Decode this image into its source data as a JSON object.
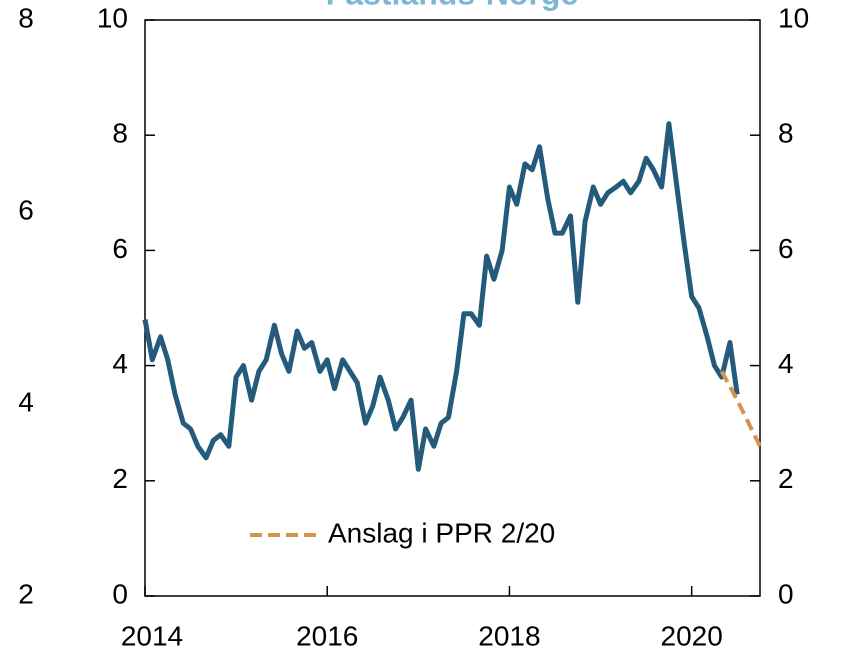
{
  "chart_data": {
    "type": "line",
    "title": "Fastlands-Norge",
    "title_color": "#7db7d8",
    "xlim": [
      2014,
      2020.75
    ],
    "xticks": [
      2014,
      2016,
      2018,
      2020
    ],
    "ylim": [
      0,
      10
    ],
    "yticks": [
      0,
      2,
      4,
      6,
      8,
      10
    ],
    "y2lim": [
      0,
      10
    ],
    "y2ticks": [
      0,
      2,
      4,
      6,
      8,
      10
    ],
    "y3lim": [
      2,
      8
    ],
    "y3ticks": [
      2,
      4,
      6,
      8
    ],
    "series": [
      {
        "color": "#245b7c",
        "style": "solid",
        "x": [
          2014,
          2014.08,
          2014.17,
          2014.25,
          2014.33,
          2014.42,
          2014.5,
          2014.58,
          2014.67,
          2014.75,
          2014.83,
          2014.92,
          2015,
          2015.08,
          2015.17,
          2015.25,
          2015.33,
          2015.42,
          2015.5,
          2015.58,
          2015.67,
          2015.75,
          2015.83,
          2015.92,
          2016,
          2016.08,
          2016.17,
          2016.25,
          2016.33,
          2016.42,
          2016.5,
          2016.58,
          2016.67,
          2016.75,
          2016.83,
          2016.92,
          2017,
          2017.08,
          2017.17,
          2017.25,
          2017.33,
          2017.42,
          2017.5,
          2017.58,
          2017.67,
          2017.75,
          2017.83,
          2017.92,
          2018,
          2018.08,
          2018.17,
          2018.25,
          2018.33,
          2018.42,
          2018.5,
          2018.58,
          2018.67,
          2018.75,
          2018.83,
          2018.92,
          2019,
          2019.08,
          2019.17,
          2019.25,
          2019.33,
          2019.42,
          2019.5,
          2019.58,
          2019.67,
          2019.75,
          2019.83,
          2019.92,
          2020,
          2020.08,
          2020.17,
          2020.25,
          2020.33,
          2020.42,
          2020.5
        ],
        "values": [
          4.8,
          4.1,
          4.5,
          4.1,
          3.5,
          3.0,
          2.9,
          2.6,
          2.4,
          2.7,
          2.8,
          2.6,
          3.8,
          4.0,
          3.4,
          3.9,
          4.1,
          4.7,
          4.2,
          3.9,
          4.6,
          4.3,
          4.4,
          3.9,
          4.1,
          3.6,
          4.1,
          3.9,
          3.7,
          3.0,
          3.3,
          3.8,
          3.4,
          2.9,
          3.1,
          3.4,
          2.2,
          2.9,
          2.6,
          3.0,
          3.1,
          3.9,
          4.9,
          4.9,
          4.7,
          5.9,
          5.5,
          6.0,
          7.1,
          6.8,
          7.5,
          7.4,
          7.8,
          6.9,
          6.3,
          6.3,
          6.6,
          5.1,
          6.5,
          7.1,
          6.8,
          7.0,
          7.1,
          7.2,
          7.0,
          7.2,
          7.6,
          7.4,
          7.1,
          8.2,
          7.2,
          6.1,
          5.2,
          5.0,
          4.5,
          4.0,
          3.8,
          4.4,
          3.5
        ]
      },
      {
        "name": "Anslag i PPR 2/20",
        "color": "#d4944a",
        "style": "dashed",
        "x": [
          2020.33,
          2020.5,
          2020.75
        ],
        "values": [
          3.9,
          3.4,
          2.6
        ]
      }
    ]
  }
}
